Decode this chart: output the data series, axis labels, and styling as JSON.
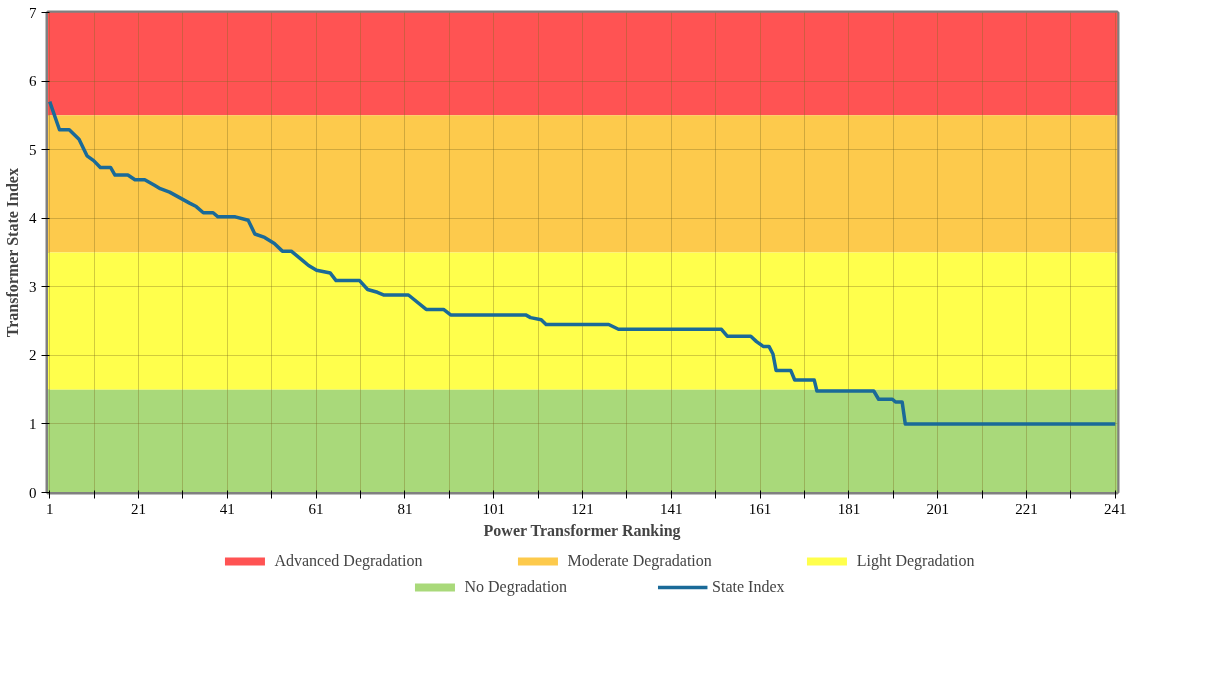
{
  "chart_data": {
    "type": "line",
    "xlabel": "Power Transformer Ranking",
    "ylabel": "Transformer State Index",
    "xlim": [
      0.5,
      241.5
    ],
    "ylim": [
      0,
      7
    ],
    "xticks": [
      1,
      {
        "value": 11,
        "label": null
      },
      21,
      {
        "value": 31,
        "label": null
      },
      41,
      {
        "value": 51,
        "label": null
      },
      61,
      {
        "value": 71,
        "label": null
      },
      81,
      {
        "value": 91,
        "label": null
      },
      101,
      {
        "value": 111,
        "label": null
      },
      121,
      {
        "value": 131,
        "label": null
      },
      141,
      {
        "value": 151,
        "label": null
      },
      161,
      {
        "value": 171,
        "label": null
      },
      181,
      {
        "value": 191,
        "label": null
      },
      201,
      {
        "value": 211,
        "label": null
      },
      221,
      {
        "value": 231,
        "label": null
      },
      241
    ],
    "yticks": [
      0,
      1,
      2,
      3,
      4,
      5,
      6,
      7
    ],
    "grid": true,
    "legend": "bottom",
    "bands": [
      {
        "axis": "y",
        "from": 5.5,
        "to": 7,
        "label": "Advanced Degradation",
        "color": "#ff5353"
      },
      {
        "axis": "y",
        "from": 3.5,
        "to": 5.5,
        "label": "Moderate Degradation",
        "color": "#fdca4c"
      },
      {
        "axis": "y",
        "from": 1.5,
        "to": 3.5,
        "label": "Light Degradation",
        "color": "#ffff4c"
      },
      {
        "axis": "y",
        "from": 0,
        "to": 1.5,
        "label": "No Degradation",
        "color": "#a9d97a"
      }
    ],
    "series": [
      {
        "name": "State Index",
        "color": "#1a6a98",
        "x": [
          1,
          3.2,
          5.4,
          7.6,
          9.4,
          10.9,
          12.4,
          14.7,
          15.7,
          18.6,
          20.2,
          22.4,
          24.6,
          25.9,
          28,
          32.5,
          34,
          35.6,
          37.8,
          38.9,
          42.8,
          45.7,
          47.2,
          49.4,
          51.6,
          53.4,
          55.4,
          56.7,
          58.2,
          59.3,
          61.1,
          64.2,
          65.5,
          70.8,
          72.6,
          74.8,
          76.3,
          81.8,
          85.8,
          89.7,
          91.3,
          108.2,
          109.3,
          111.7,
          112.8,
          126.9,
          129.1,
          152.3,
          153.6,
          158.9,
          160.2,
          161.7,
          163,
          163.9,
          164.6,
          167.9,
          168.8,
          173.2,
          173.8,
          186.6,
          187.7,
          190.8,
          191.5,
          193,
          193.7,
          241
        ],
        "values": [
          5.7,
          5.29,
          5.29,
          5.15,
          4.91,
          4.84,
          4.74,
          4.74,
          4.63,
          4.63,
          4.56,
          4.56,
          4.48,
          4.43,
          4.38,
          4.22,
          4.17,
          4.08,
          4.08,
          4.02,
          4.02,
          3.97,
          3.77,
          3.72,
          3.63,
          3.52,
          3.52,
          3.45,
          3.37,
          3.31,
          3.24,
          3.2,
          3.09,
          3.09,
          2.96,
          2.92,
          2.88,
          2.88,
          2.67,
          2.67,
          2.59,
          2.59,
          2.55,
          2.52,
          2.45,
          2.45,
          2.38,
          2.38,
          2.28,
          2.28,
          2.2,
          2.13,
          2.13,
          2.02,
          1.78,
          1.78,
          1.64,
          1.64,
          1.48,
          1.48,
          1.36,
          1.36,
          1.32,
          1.32,
          1.0,
          1.0
        ]
      }
    ]
  }
}
